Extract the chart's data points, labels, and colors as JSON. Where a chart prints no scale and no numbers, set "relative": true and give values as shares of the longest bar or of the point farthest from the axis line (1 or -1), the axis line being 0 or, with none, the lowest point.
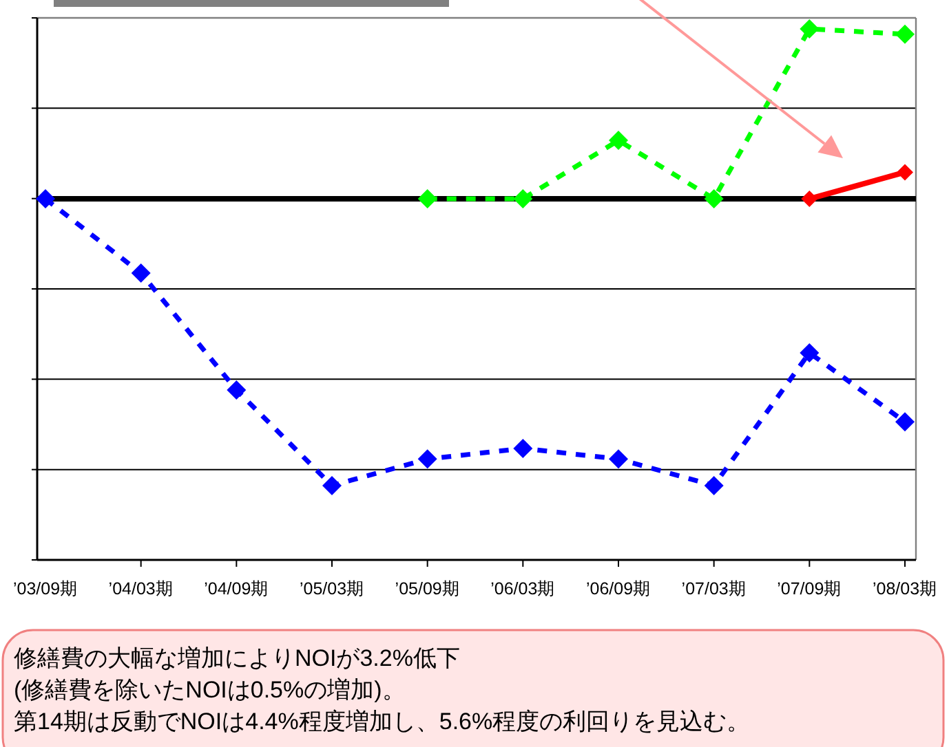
{
  "chart_data": {
    "type": "line",
    "relative": true,
    "categories": [
      "’03/09期",
      "’04/03期",
      "’04/09期",
      "’05/03期",
      "’05/09期",
      "’06/03期",
      "’06/09期",
      "’07/03期",
      "’07/09期",
      "’08/03期"
    ],
    "series": [
      {
        "color": "#0000ff",
        "line_style": "dashed",
        "values": [
          0.68,
          0.54,
          0.32,
          0.14,
          0.19,
          0.21,
          0.19,
          0.14,
          0.39,
          0.26
        ]
      },
      {
        "color": "#00ff00",
        "line_style": "dashed",
        "values": [
          null,
          null,
          null,
          null,
          0.68,
          0.68,
          0.79,
          0.68,
          1,
          0.99
        ]
      },
      {
        "color": "#ff0000",
        "line_style": "solid",
        "values": [
          null,
          null,
          null,
          null,
          null,
          null,
          null,
          null,
          0.68,
          0.73
        ]
      }
    ],
    "grid": "y",
    "marker": "diamond",
    "ref_lines": [
      {
        "axis": "y",
        "value": 0.68,
        "color": "#000000"
      }
    ],
    "annotations": [
      "修繕費の大幅な増加によりNOIが3.2%低下",
      "(修繕費を除いたNOIは0.5%の増加)。",
      "第14期は反動でNOIは4.4%程度増加し、5.6%程度の利回りを見込む。"
    ]
  }
}
